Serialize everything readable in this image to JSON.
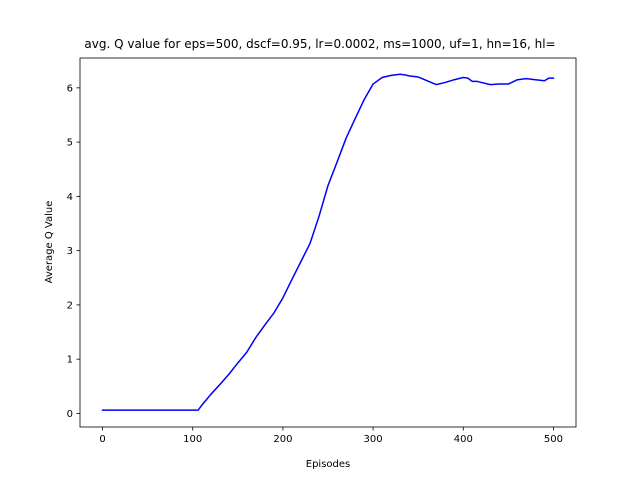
{
  "chart_data": {
    "type": "line",
    "title": "avg. Q value for eps=500, dscf=0.95, lr=0.0002, ms=1000, uf=1, hn=16, hl=",
    "xlabel": "Episodes",
    "ylabel": "Average Q Value",
    "xlim": [
      -25,
      525
    ],
    "ylim": [
      -0.25,
      6.55
    ],
    "xticks": [
      0,
      100,
      200,
      300,
      400,
      500
    ],
    "yticks": [
      0,
      1,
      2,
      3,
      4,
      5,
      6
    ],
    "grid": false,
    "legend": "none",
    "series": [
      {
        "color": "#0000ff",
        "x": [
          0,
          50,
          106,
          110,
          115,
          120,
          130,
          140,
          150,
          160,
          170,
          180,
          190,
          200,
          210,
          220,
          230,
          240,
          250,
          260,
          270,
          280,
          290,
          300,
          310,
          320,
          330,
          335,
          340,
          350,
          360,
          370,
          380,
          390,
          400,
          405,
          410,
          415,
          420,
          430,
          440,
          450,
          460,
          470,
          480,
          490,
          495,
          500
        ],
        "y": [
          0.06,
          0.06,
          0.06,
          0.15,
          0.25,
          0.35,
          0.53,
          0.72,
          0.93,
          1.13,
          1.4,
          1.63,
          1.85,
          2.13,
          2.47,
          2.8,
          3.13,
          3.63,
          4.2,
          4.63,
          5.07,
          5.43,
          5.78,
          6.07,
          6.19,
          6.23,
          6.25,
          6.24,
          6.22,
          6.2,
          6.13,
          6.06,
          6.1,
          6.15,
          6.19,
          6.18,
          6.12,
          6.12,
          6.1,
          6.06,
          6.07,
          6.07,
          6.15,
          6.17,
          6.15,
          6.13,
          6.18,
          6.18
        ]
      }
    ]
  }
}
